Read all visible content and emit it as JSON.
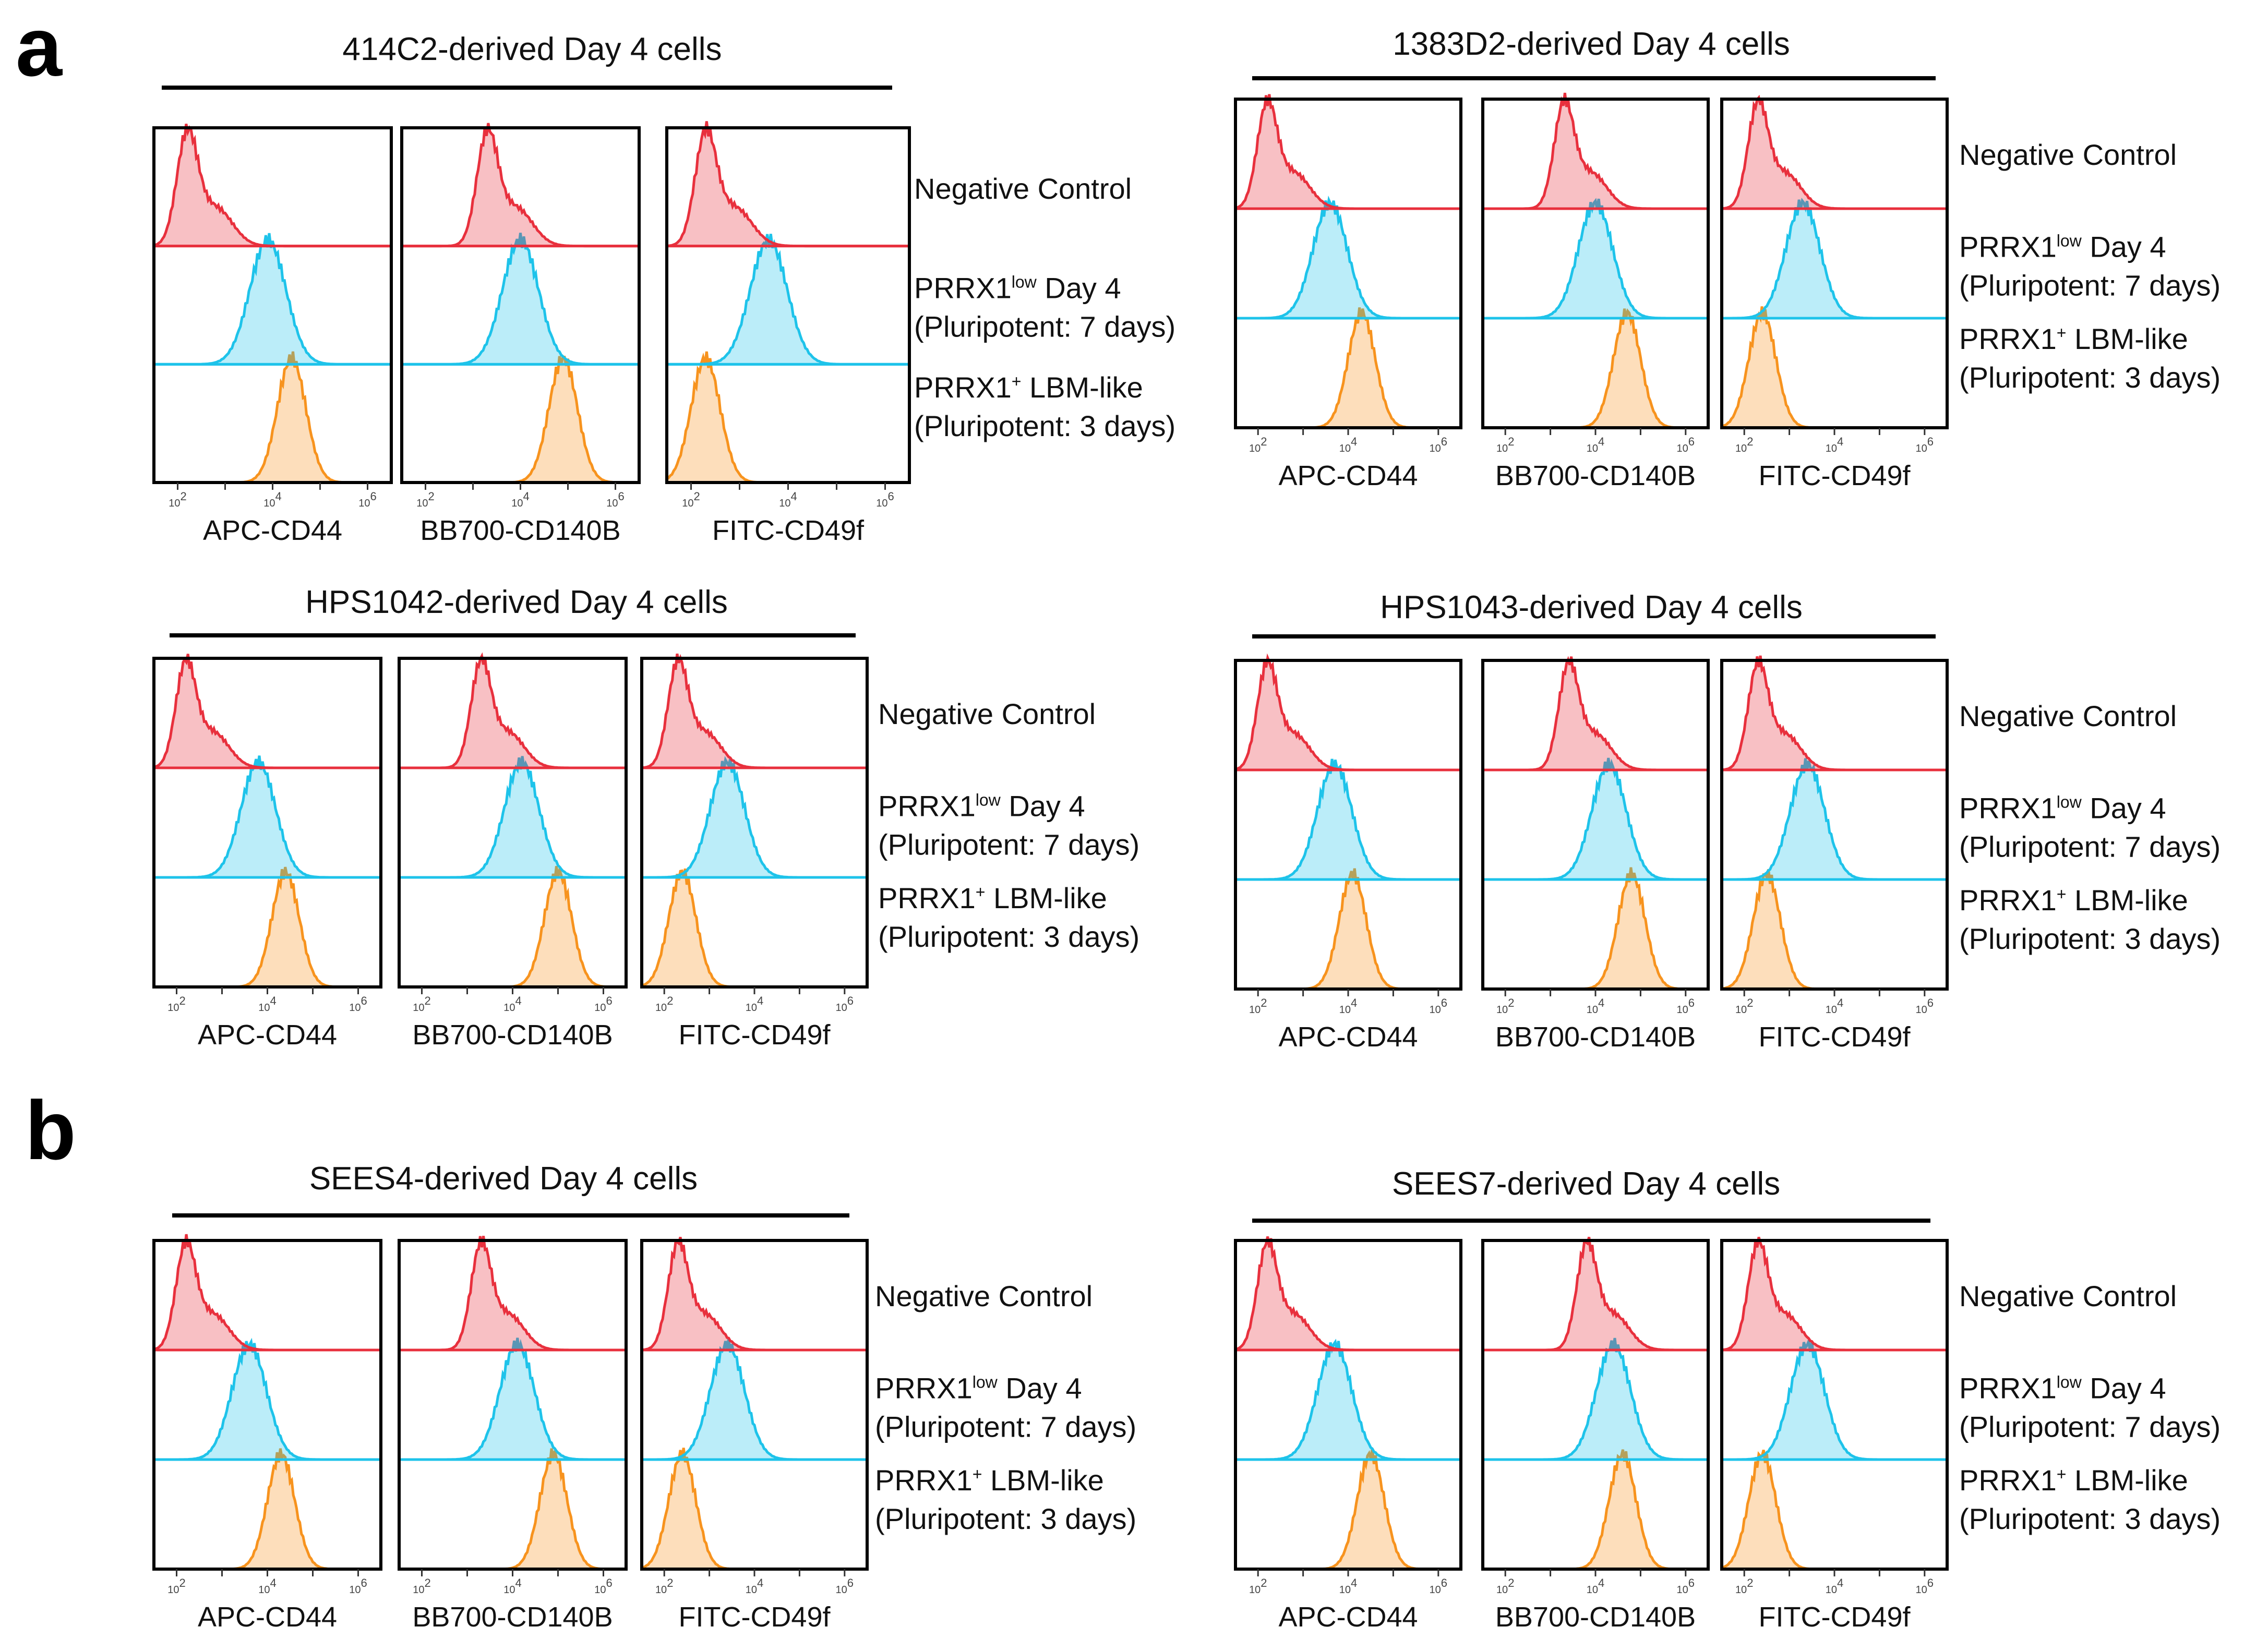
{
  "panel_labels": [
    "a",
    "b"
  ],
  "colors": {
    "negative_control": "#e8303d",
    "prrx1_low": "#1ec3ea",
    "prrx1_lbm": "#f7931e"
  },
  "chart_data": {
    "type": "histogram",
    "x_scale": "log10",
    "x_ticks": [
      {
        "base": "10",
        "exp": "2"
      },
      {
        "base": "10",
        "exp": "4"
      },
      {
        "base": "10",
        "exp": "6"
      }
    ],
    "x_range_log10": [
      1.5,
      6.5
    ],
    "markers": [
      "APC-CD44",
      "BB700-CD140B",
      "FITC-CD49f"
    ],
    "legend": [
      {
        "line1": "Negative Control",
        "line2": ""
      },
      {
        "line1": "PRRX1",
        "line1_sup": "low",
        "line1_rest": " Day 4",
        "line2": "(Pluripotent: 7 days)"
      },
      {
        "line1": "PRRX1",
        "line1_sup": "+",
        "line1_rest": " LBM-like",
        "line2": "(Pluripotent: 3 days)"
      }
    ],
    "series_names": [
      "Negative Control",
      "PRRX1low Day 4",
      "PRRX1+ LBM-like"
    ],
    "groups": [
      {
        "title": "414C2-derived Day 4 cells",
        "panel": "a",
        "peaks_log10": {
          "APC-CD44": [
            2.2,
            3.9,
            4.4
          ],
          "BB700-CD140B": [
            3.3,
            4.0,
            4.9
          ],
          "FITC-CD49f": [
            2.3,
            3.6,
            2.3
          ]
        }
      },
      {
        "title": "1383D2-derived Day 4 cells",
        "panel": "a",
        "peaks_log10": {
          "APC-CD44": [
            2.2,
            3.6,
            4.3
          ],
          "BB700-CD140B": [
            3.3,
            4.0,
            4.7
          ],
          "FITC-CD49f": [
            2.3,
            3.3,
            2.4
          ]
        }
      },
      {
        "title": "HPS1042-derived Day 4 cells",
        "panel": "a",
        "peaks_log10": {
          "APC-CD44": [
            2.2,
            3.8,
            4.4
          ],
          "BB700-CD140B": [
            3.3,
            4.2,
            5.0
          ],
          "FITC-CD49f": [
            2.3,
            3.4,
            2.4
          ]
        }
      },
      {
        "title": "HPS1043-derived Day 4 cells",
        "panel": "a",
        "peaks_log10": {
          "APC-CD44": [
            2.2,
            3.7,
            4.1
          ],
          "BB700-CD140B": [
            3.4,
            4.3,
            4.8
          ],
          "FITC-CD49f": [
            2.3,
            3.4,
            2.5
          ]
        }
      },
      {
        "title": "SEES4-derived Day 4 cells",
        "panel": "b",
        "peaks_log10": {
          "APC-CD44": [
            2.2,
            3.6,
            4.3
          ],
          "BB700-CD140B": [
            3.3,
            4.1,
            4.9
          ],
          "FITC-CD49f": [
            2.3,
            3.4,
            2.4
          ]
        }
      },
      {
        "title": "SEES7-derived Day 4 cells",
        "panel": "b",
        "peaks_log10": {
          "APC-CD44": [
            2.2,
            3.7,
            4.5
          ],
          "BB700-CD140B": [
            3.8,
            4.4,
            4.6
          ],
          "FITC-CD49f": [
            2.3,
            3.4,
            2.4
          ]
        }
      }
    ]
  }
}
